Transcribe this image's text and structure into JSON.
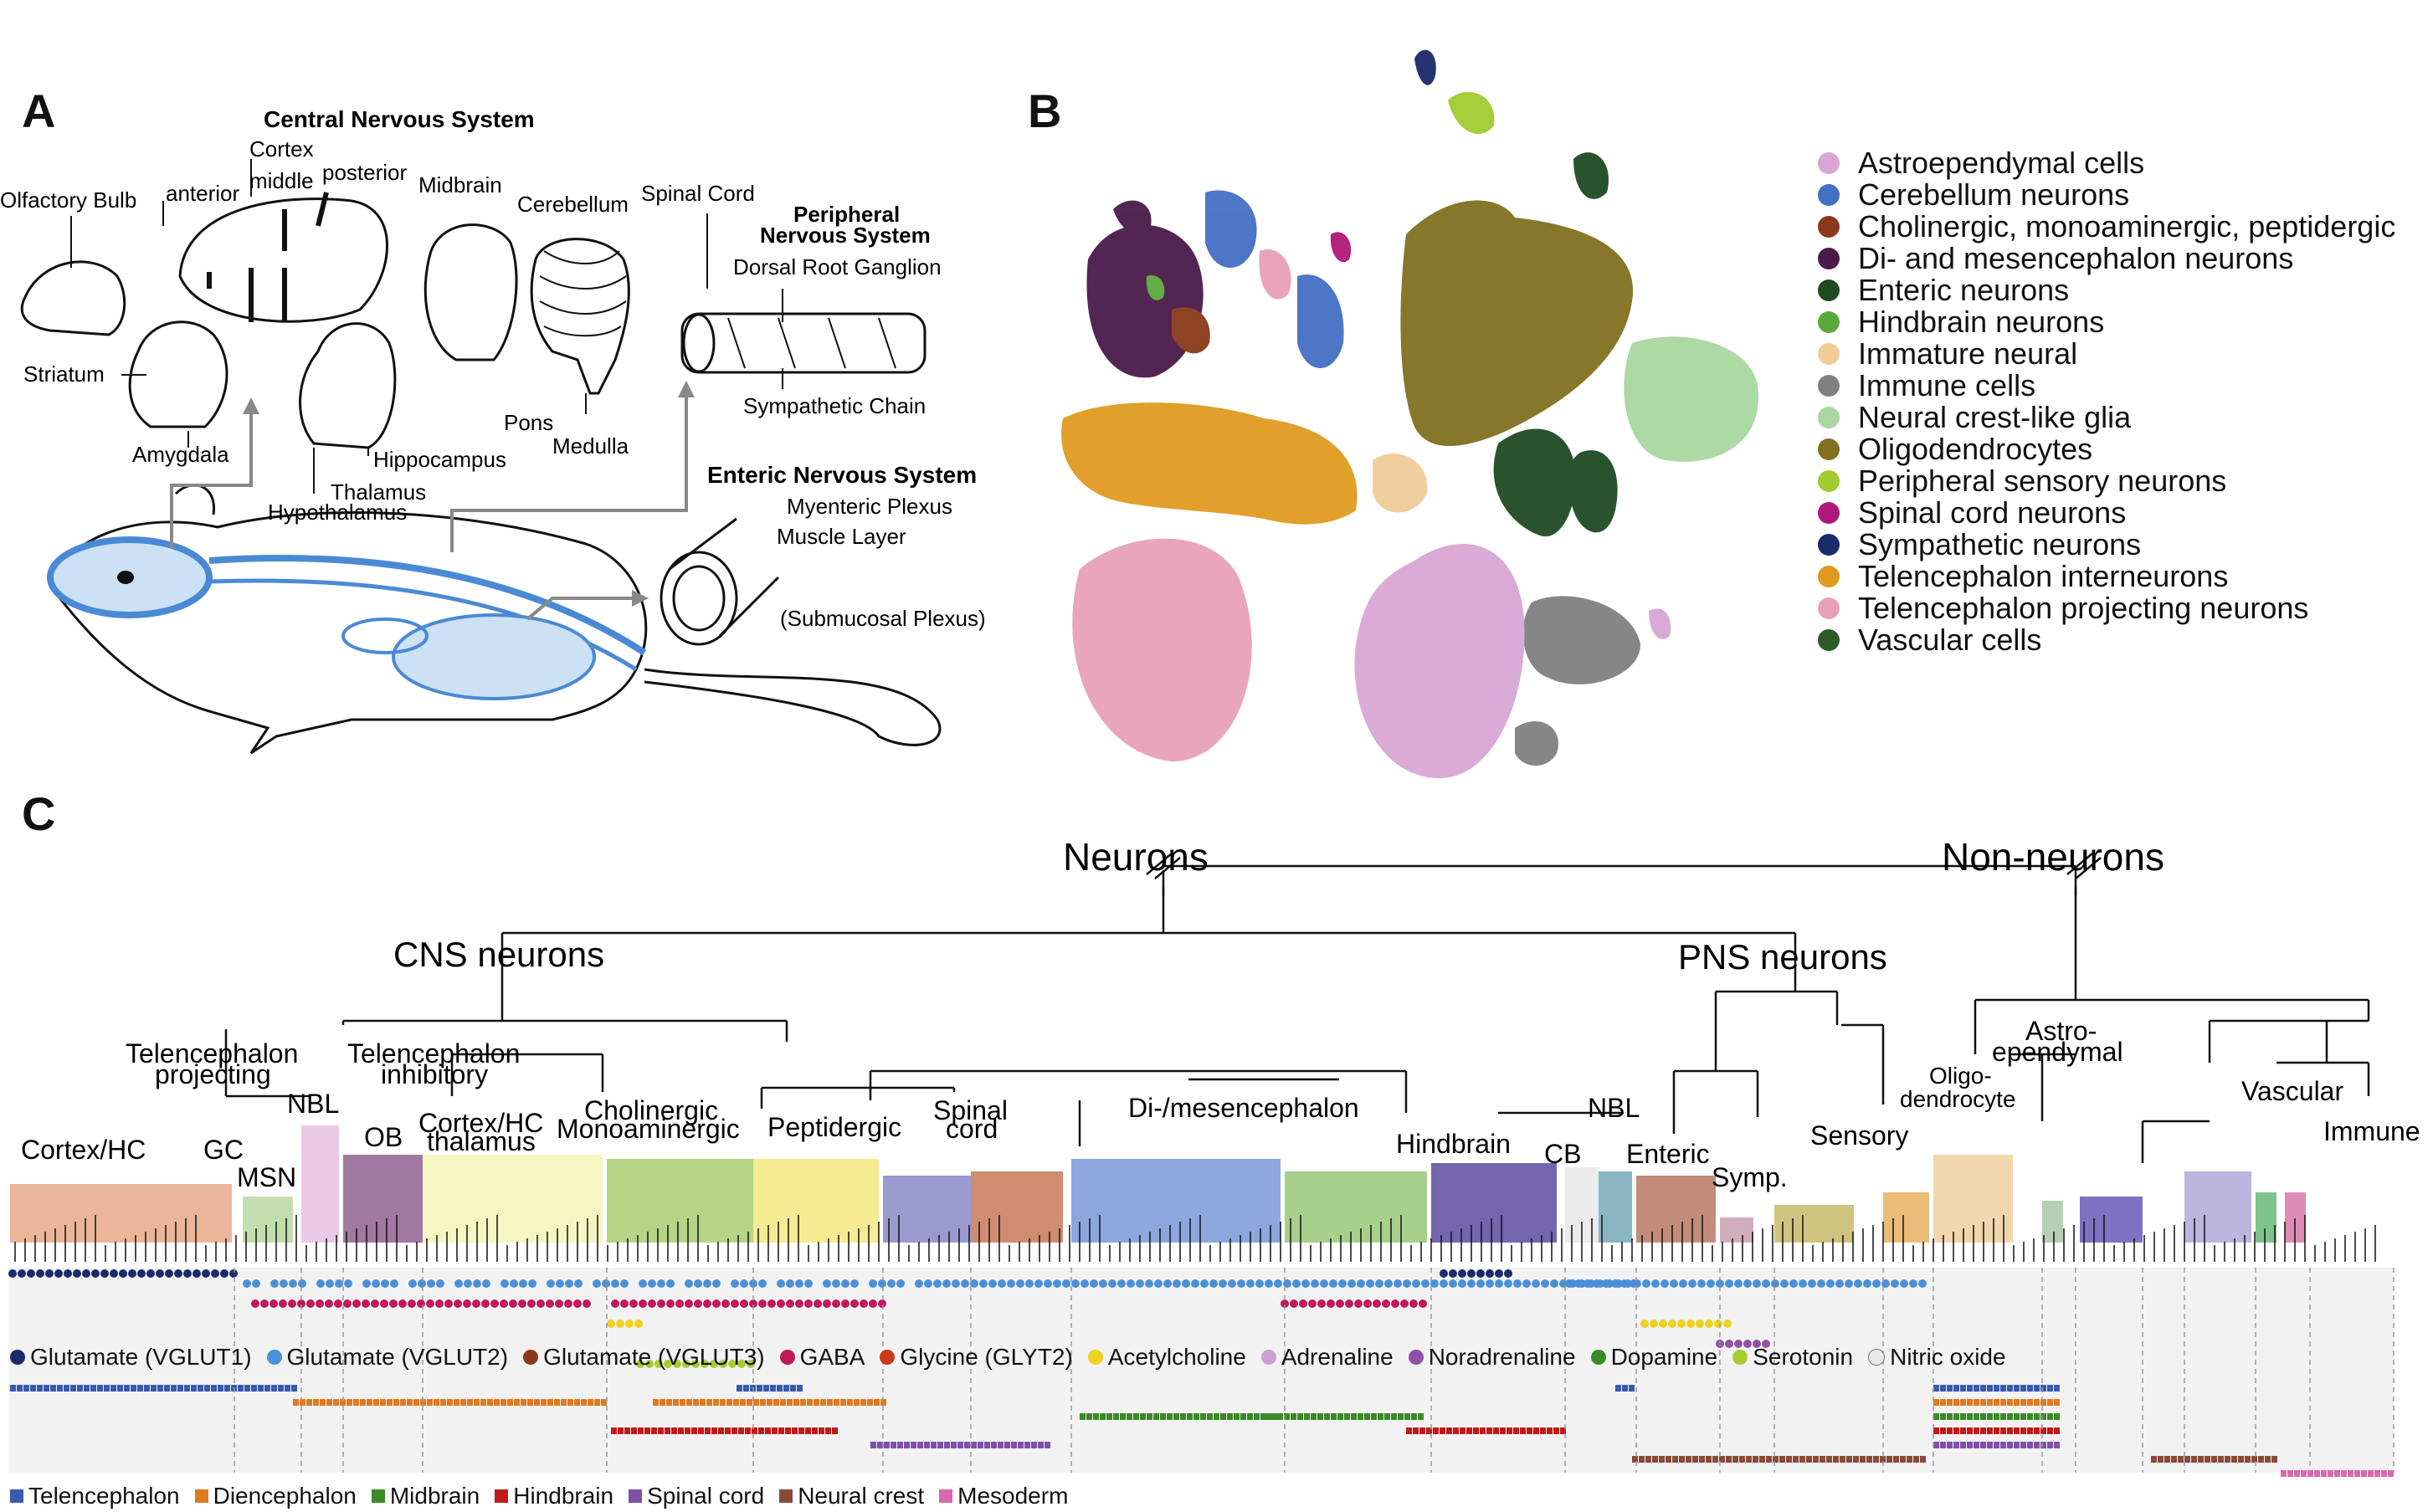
{
  "panels": {
    "a": "A",
    "b": "B",
    "c": "C"
  },
  "panel_a": {
    "cns_title": "Central Nervous System",
    "cortex": "Cortex",
    "anterior": "anterior",
    "middle": "middle",
    "posterior": "posterior",
    "olfactory_bulb": "Olfactory Bulb",
    "midbrain": "Midbrain",
    "cerebellum": "Cerebellum",
    "spinal_cord": "Spinal Cord",
    "pns_title_1": "Peripheral",
    "pns_title_2": "Nervous System",
    "drg": "Dorsal Root Ganglion",
    "sympathetic_chain": "Sympathetic Chain",
    "striatum": "Striatum",
    "amygdala": "Amygdala",
    "hippocampus": "Hippocampus",
    "thalamus": "Thalamus",
    "hypothalamus": "Hypothalamus",
    "pons": "Pons",
    "medulla": "Medulla",
    "ens_title": "Enteric Nervous System",
    "myenteric": "Myenteric Plexus",
    "muscle": "Muscle Layer",
    "submucosal": "(Submucosal Plexus)"
  },
  "panel_b": {
    "legend": [
      {
        "label": "Astroependymal cells",
        "color": "#d9a6d4"
      },
      {
        "label": "Cerebellum neurons",
        "color": "#4470c4"
      },
      {
        "label": "Cholinergic, monoaminergic, peptidergic",
        "color": "#8a3a1a"
      },
      {
        "label": "Di- and mesencephalon neurons",
        "color": "#4a1a4a"
      },
      {
        "label": "Enteric neurons",
        "color": "#1e4a22"
      },
      {
        "label": "Hindbrain neurons",
        "color": "#5aaa3a"
      },
      {
        "label": "Immature neural",
        "color": "#f0cc98"
      },
      {
        "label": "Immune cells",
        "color": "#808080"
      },
      {
        "label": "Neural crest-like glia",
        "color": "#a8d8a0"
      },
      {
        "label": "Oligodendrocytes",
        "color": "#807020"
      },
      {
        "label": "Peripheral sensory neurons",
        "color": "#a0cc30"
      },
      {
        "label": "Spinal cord neurons",
        "color": "#b01878"
      },
      {
        "label": "Sympathetic neurons",
        "color": "#1a2a6a"
      },
      {
        "label": "Telencephalon interneurons",
        "color": "#e09a20"
      },
      {
        "label": "Telencephalon projecting neurons",
        "color": "#e8a0b8"
      },
      {
        "label": "Vascular cells",
        "color": "#2e5a2a"
      }
    ]
  },
  "panel_c": {
    "neurons": "Neurons",
    "non_neurons": "Non-neurons",
    "cns": "CNS neurons",
    "pns": "PNS neurons",
    "tel_proj_1": "Telencephalon",
    "tel_proj_2": "projecting",
    "tel_inh_1": "Telencephalon",
    "tel_inh_2": "inhibitory",
    "nbl1": "NBL",
    "cortex_hc": "Cortex/HC",
    "gc": "GC",
    "msn": "MSN",
    "ob": "OB",
    "cortex_hc_thal_1": "Cortex/HC",
    "cortex_hc_thal_2": "thalamus",
    "cholinergic_1": "Cholinergic",
    "cholinergic_2": "Monoaminergic",
    "peptidergic": "Peptidergic",
    "spinal_1": "Spinal",
    "spinal_2": "cord",
    "dimes": "Di-/mesencephalon",
    "hindbrain": "Hindbrain",
    "cb": "CB",
    "nbl2": "NBL",
    "enteric": "Enteric",
    "symp": "Symp.",
    "sensory": "Sensory",
    "oligo_1": "Oligo-",
    "oligo_2": "dendrocyte",
    "astro_1": "Astro-",
    "astro_2": "ependymal",
    "vascular": "Vascular",
    "immune": "Immune",
    "neurotransmitters": [
      {
        "label": "Glutamate (VGLUT1)",
        "color": "#1a2a6a",
        "ring": false
      },
      {
        "label": "Glutamate (VGLUT2)",
        "color": "#4a90d8",
        "ring": false
      },
      {
        "label": "Glutamate (VGLUT3)",
        "color": "#8a3a1a",
        "ring": false
      },
      {
        "label": "GABA",
        "color": "#c0185a",
        "ring": false
      },
      {
        "label": "Glycine (GLYT2)",
        "color": "#c83a1a",
        "ring": false
      },
      {
        "label": "Acetylcholine",
        "color": "#f0d020",
        "ring": false
      },
      {
        "label": "Adrenaline",
        "color": "#c8a0d0",
        "ring": false
      },
      {
        "label": "Noradrenaline",
        "color": "#9050a8",
        "ring": false
      },
      {
        "label": "Dopamine",
        "color": "#3a8a2a",
        "ring": false
      },
      {
        "label": "Serotonin",
        "color": "#a8cc30",
        "ring": false
      },
      {
        "label": "Nitric oxide",
        "color": "#e8e8e8",
        "ring": true
      }
    ],
    "regions": [
      {
        "label": "Telencephalon",
        "color": "#3a5ab0"
      },
      {
        "label": "Diencephalon",
        "color": "#e07a20"
      },
      {
        "label": "Midbrain",
        "color": "#3a8a2a"
      },
      {
        "label": "Hindbrain",
        "color": "#c01a1a"
      },
      {
        "label": "Spinal cord",
        "color": "#8050a8"
      },
      {
        "label": "Neural crest",
        "color": "#8a4a3a"
      },
      {
        "label": "Mesoderm",
        "color": "#d868b0"
      }
    ],
    "cluster_boxes": [
      {
        "name": "cortex-hc",
        "color": "#e8a888"
      },
      {
        "name": "msn",
        "color": "#b8d8a0"
      },
      {
        "name": "nbl1",
        "color": "#e8c0e0"
      },
      {
        "name": "ob",
        "color": "#906090"
      },
      {
        "name": "cortex-hc-thal",
        "color": "#f4f4b8"
      },
      {
        "name": "cholinergic",
        "color": "#a8cc70"
      },
      {
        "name": "peptidergic",
        "color": "#f4e880"
      },
      {
        "name": "spinal",
        "color": "#8888c8"
      },
      {
        "name": "spinal2",
        "color": "#c87858"
      },
      {
        "name": "dimes",
        "color": "#7898d8"
      },
      {
        "name": "dimes2",
        "color": "#98c878"
      },
      {
        "name": "hindbrain",
        "color": "#5a4aa0"
      },
      {
        "name": "cb",
        "color": "#e8e8e8"
      },
      {
        "name": "nbl2",
        "color": "#78a8b8"
      },
      {
        "name": "enteric",
        "color": "#b87860"
      },
      {
        "name": "symp",
        "color": "#c8a0b0"
      },
      {
        "name": "sensory",
        "color": "#c8b868"
      },
      {
        "name": "sensory2",
        "color": "#e8b060"
      },
      {
        "name": "oligo",
        "color": "#f0d0a0"
      },
      {
        "name": "astro1",
        "color": "#a8c8a8"
      },
      {
        "name": "astro2",
        "color": "#6858b8"
      },
      {
        "name": "vascular",
        "color": "#b0a8d8"
      },
      {
        "name": "immune1",
        "color": "#68b878"
      },
      {
        "name": "immune2",
        "color": "#d878a8"
      }
    ]
  }
}
